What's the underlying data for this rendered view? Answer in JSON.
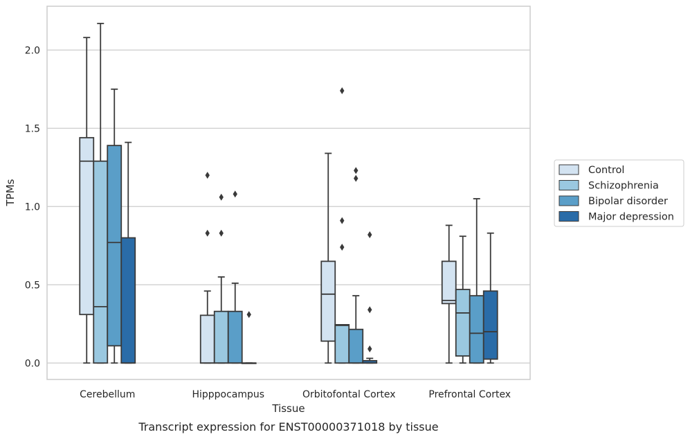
{
  "chart_data": {
    "type": "box",
    "xlabel": "Tissue",
    "ylabel": "TPMs",
    "caption": "Transcript expression for ENST00000371018 by tissue",
    "ylim": [
      -0.105,
      2.28
    ],
    "yticks": [
      0.0,
      0.5,
      1.0,
      1.5,
      2.0
    ],
    "ytick_labels": [
      "0.0",
      "0.5",
      "1.0",
      "1.5",
      "2.0"
    ],
    "grid": true,
    "legend_position": "right",
    "categories": [
      "Cerebellum",
      "Hipppocampus",
      "Orbitofontal Cortex",
      "Prefrontal Cortex"
    ],
    "series": [
      {
        "name": "Control",
        "color": "#d3e3f1",
        "boxes": [
          {
            "whisker_low": 0.0,
            "q1": 0.31,
            "median": 1.29,
            "q3": 1.44,
            "whisker_high": 2.08,
            "outliers": []
          },
          {
            "whisker_low": 0.0,
            "q1": 0.0,
            "median": 0.0,
            "q3": 0.305,
            "whisker_high": 0.46,
            "outliers": [
              0.83,
              1.2
            ]
          },
          {
            "whisker_low": 0.0,
            "q1": 0.14,
            "median": 0.44,
            "q3": 0.65,
            "whisker_high": 1.34,
            "outliers": []
          },
          {
            "whisker_low": 0.0,
            "q1": 0.38,
            "median": 0.4,
            "q3": 0.65,
            "whisker_high": 0.88,
            "outliers": []
          }
        ]
      },
      {
        "name": "Schizophrenia",
        "color": "#9ac8e0",
        "boxes": [
          {
            "whisker_low": 0.0,
            "q1": 0.0,
            "median": 0.36,
            "q3": 1.29,
            "whisker_high": 2.17,
            "outliers": []
          },
          {
            "whisker_low": 0.0,
            "q1": 0.0,
            "median": 0.0,
            "q3": 0.33,
            "whisker_high": 0.55,
            "outliers": [
              0.83,
              1.06
            ]
          },
          {
            "whisker_low": 0.0,
            "q1": 0.0,
            "median": 0.24,
            "q3": 0.245,
            "whisker_high": 0.245,
            "outliers": [
              0.74,
              0.91,
              1.74
            ]
          },
          {
            "whisker_low": 0.0,
            "q1": 0.045,
            "median": 0.32,
            "q3": 0.47,
            "whisker_high": 0.81,
            "outliers": []
          }
        ]
      },
      {
        "name": "Bipolar disorder",
        "color": "#5a9ec8",
        "boxes": [
          {
            "whisker_low": 0.0,
            "q1": 0.11,
            "median": 0.77,
            "q3": 1.39,
            "whisker_high": 1.75,
            "outliers": []
          },
          {
            "whisker_low": 0.0,
            "q1": 0.0,
            "median": 0.0,
            "q3": 0.33,
            "whisker_high": 0.51,
            "outliers": [
              1.08
            ]
          },
          {
            "whisker_low": 0.0,
            "q1": 0.0,
            "median": 0.0,
            "q3": 0.215,
            "whisker_high": 0.43,
            "outliers": [
              1.18,
              1.23
            ]
          },
          {
            "whisker_low": 0.0,
            "q1": 0.0,
            "median": 0.19,
            "q3": 0.43,
            "whisker_high": 1.05,
            "outliers": []
          }
        ]
      },
      {
        "name": "Major depression",
        "color": "#2a6ca8",
        "boxes": [
          {
            "whisker_low": 0.0,
            "q1": 0.0,
            "median": 0.0,
            "q3": 0.8,
            "whisker_high": 1.41,
            "outliers": []
          },
          {
            "whisker_low": 0.0,
            "q1": 0.0,
            "median": 0.0,
            "q3": 0.0,
            "whisker_high": 0.0,
            "outliers": [
              0.31
            ]
          },
          {
            "whisker_low": 0.0,
            "q1": 0.0,
            "median": 0.0,
            "q3": 0.015,
            "whisker_high": 0.03,
            "outliers": [
              0.09,
              0.34,
              0.82
            ]
          },
          {
            "whisker_low": 0.0,
            "q1": 0.025,
            "median": 0.2,
            "q3": 0.46,
            "whisker_high": 0.83,
            "outliers": []
          }
        ]
      }
    ]
  }
}
